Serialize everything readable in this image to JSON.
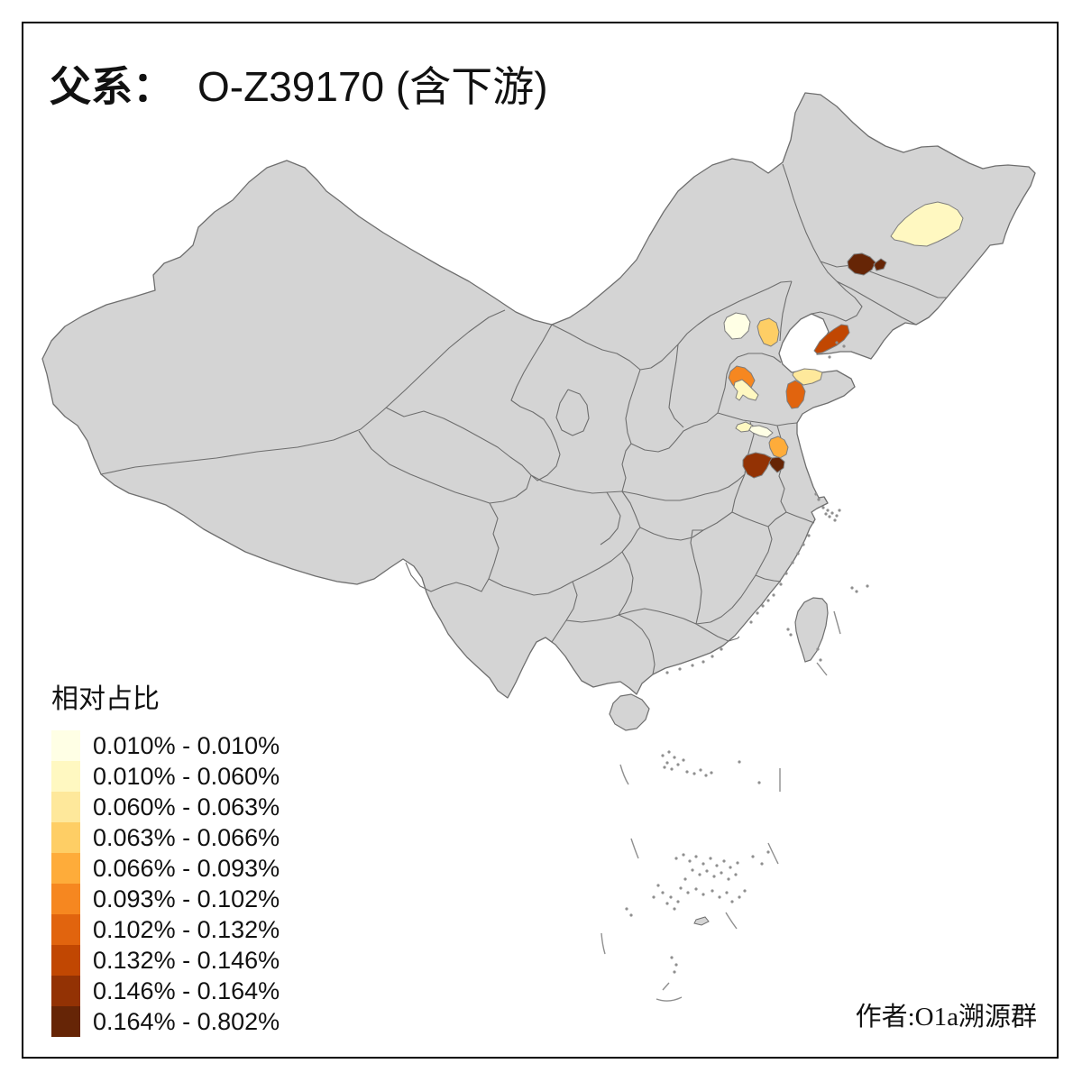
{
  "header": {
    "title_prefix": "父系：",
    "title_main": "O-Z39170 (含下游)"
  },
  "legend": {
    "title": "相对占比",
    "classes": [
      {
        "label": "0.010% - 0.010%",
        "color": "#FFFFE5"
      },
      {
        "label": "0.010% - 0.060%",
        "color": "#FFF8C1"
      },
      {
        "label": "0.060% - 0.063%",
        "color": "#FEE89B"
      },
      {
        "label": "0.063% - 0.066%",
        "color": "#FECE65"
      },
      {
        "label": "0.066% - 0.093%",
        "color": "#FEAC3A"
      },
      {
        "label": "0.093% - 0.102%",
        "color": "#F68720"
      },
      {
        "label": "0.102% - 0.132%",
        "color": "#E1640E"
      },
      {
        "label": "0.132% - 0.146%",
        "color": "#C14702"
      },
      {
        "label": "0.146% - 0.164%",
        "color": "#933204"
      },
      {
        "label": "0.164% - 0.802%",
        "color": "#662506"
      }
    ]
  },
  "attribution": "作者:O1a溯源群",
  "map": {
    "land_fill": "#d4d4d4",
    "border_color": "#6e6e6e",
    "sea_color": "#ffffff",
    "regions": [
      {
        "id": "northeast-large",
        "class_index": 2,
        "color": "#FFF8C1"
      },
      {
        "id": "northeast-dark",
        "class_index": 10,
        "color": "#662506"
      },
      {
        "id": "beijing-area",
        "class_index": 1,
        "color": "#FFFFE5"
      },
      {
        "id": "tianjin-area",
        "class_index": 4,
        "color": "#FECE65"
      },
      {
        "id": "liaodong-tip",
        "class_index": 8,
        "color": "#C14702"
      },
      {
        "id": "shandong-nw",
        "class_index": 6,
        "color": "#F68720"
      },
      {
        "id": "shandong-central",
        "class_index": 2,
        "color": "#FFF8C1"
      },
      {
        "id": "shandong-peninsula",
        "class_index": 3,
        "color": "#FEE89B"
      },
      {
        "id": "shandong-se",
        "class_index": 7,
        "color": "#E1640E"
      },
      {
        "id": "central-strip",
        "class_index": 2,
        "color": "#FFF8C1"
      },
      {
        "id": "central-pale",
        "class_index": 1,
        "color": "#FFFFE5"
      },
      {
        "id": "central-orange",
        "class_index": 5,
        "color": "#FEAC3A"
      },
      {
        "id": "central-darkred",
        "class_index": 9,
        "color": "#933204"
      },
      {
        "id": "central-darkest",
        "class_index": 10,
        "color": "#662506"
      }
    ]
  },
  "chart_data": {
    "type": "choropleth-map",
    "title": "父系： O-Z39170 (含下游)",
    "legend_title": "相对占比",
    "bins": [
      "0.010% - 0.010%",
      "0.010% - 0.060%",
      "0.060% - 0.063%",
      "0.063% - 0.066%",
      "0.066% - 0.093%",
      "0.093% - 0.102%",
      "0.102% - 0.132%",
      "0.132% - 0.146%",
      "0.146% - 0.164%",
      "0.164% - 0.802%"
    ],
    "palette": [
      "#FFFFE5",
      "#FFF8C1",
      "#FEE89B",
      "#FECE65",
      "#FEAC3A",
      "#F68720",
      "#E1640E",
      "#C14702",
      "#933204",
      "#662506"
    ],
    "colored_region_count": 14
  }
}
